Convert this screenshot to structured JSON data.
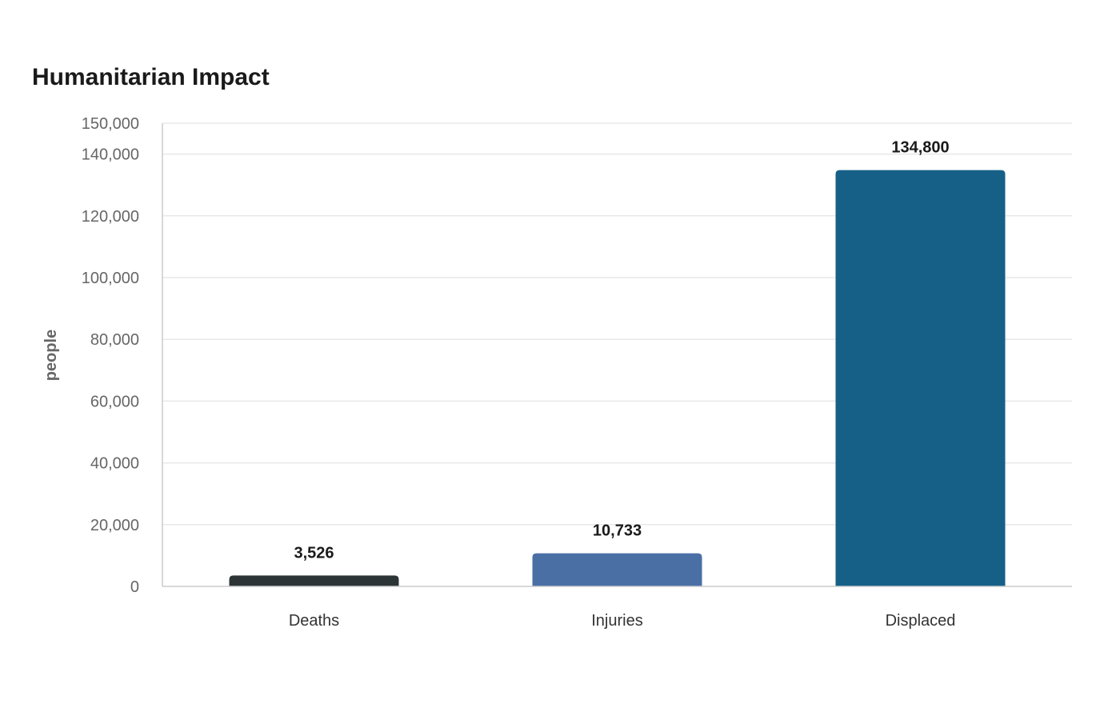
{
  "chart_data": {
    "type": "bar",
    "title": "Humanitarian Impact",
    "ylabel": "people",
    "xlabel": "",
    "categories": [
      "Deaths",
      "Injuries",
      "Displaced"
    ],
    "values": [
      3526,
      10733,
      134800
    ],
    "value_labels": [
      "3,526",
      "10,733",
      "134,800"
    ],
    "colors": [
      "#2d3436",
      "#4a6fa5",
      "#166088"
    ],
    "ylim": [
      0,
      150000
    ],
    "yticks": [
      0,
      20000,
      40000,
      60000,
      80000,
      100000,
      120000,
      140000,
      150000
    ],
    "ytick_labels": [
      "0",
      "20,000",
      "40,000",
      "60,000",
      "80,000",
      "100,000",
      "120,000",
      "140,000",
      "150,000"
    ],
    "grid": true,
    "legend": "none"
  }
}
